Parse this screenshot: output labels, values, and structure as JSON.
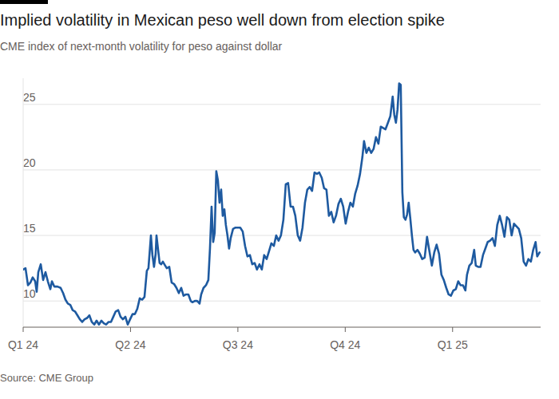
{
  "chart_data": {
    "type": "line",
    "title": "Implied volatility in Mexican peso well down from election spike",
    "subtitle": "CME index of next-month volatility for peso against dollar",
    "source": "Source: CME Group",
    "color": "#1e5aa0",
    "grid": true,
    "xlim": [
      0,
      4.82
    ],
    "xticks": [
      {
        "value": 0,
        "label": "Q1 24"
      },
      {
        "value": 1,
        "label": "Q2 24"
      },
      {
        "value": 2,
        "label": "Q3 24"
      },
      {
        "value": 3,
        "label": "Q4 24"
      },
      {
        "value": 4,
        "label": "Q1 25"
      }
    ],
    "ylim": [
      8,
      27
    ],
    "yticks": [
      10,
      15,
      20,
      25
    ],
    "x": [
      0,
      0.022,
      0.045,
      0.067,
      0.089,
      0.112,
      0.126,
      0.141,
      0.164,
      0.186,
      0.208,
      0.23,
      0.253,
      0.268,
      0.29,
      0.32,
      0.349,
      0.372,
      0.394,
      0.416,
      0.439,
      0.461,
      0.483,
      0.506,
      0.528,
      0.55,
      0.572,
      0.595,
      0.617,
      0.639,
      0.662,
      0.684,
      0.706,
      0.729,
      0.751,
      0.773,
      0.796,
      0.818,
      0.84,
      0.862,
      0.885,
      0.907,
      0.929,
      0.952,
      0.974,
      0.996,
      1.019,
      1.041,
      1.063,
      1.086,
      1.108,
      1.13,
      1.152,
      1.167,
      1.19,
      1.204,
      1.219,
      1.234,
      1.242,
      1.257,
      1.271,
      1.286,
      1.301,
      1.323,
      1.338,
      1.361,
      1.383,
      1.405,
      1.428,
      1.45,
      1.472,
      1.494,
      1.517,
      1.539,
      1.561,
      1.576,
      1.599,
      1.621,
      1.643,
      1.658,
      1.68,
      1.703,
      1.725,
      1.74,
      1.755,
      1.77,
      1.784,
      1.799,
      1.814,
      1.829,
      1.844,
      1.859,
      1.874,
      1.888,
      1.903,
      1.918,
      1.933,
      1.955,
      1.978,
      2.0,
      2.022,
      2.045,
      2.067,
      2.089,
      2.112,
      2.134,
      2.156,
      2.178,
      2.201,
      2.223,
      2.245,
      2.268,
      2.29,
      2.312,
      2.335,
      2.357,
      2.379,
      2.401,
      2.424,
      2.446,
      2.468,
      2.491,
      2.513,
      2.535,
      2.558,
      2.58,
      2.602,
      2.625,
      2.647,
      2.669,
      2.691,
      2.714,
      2.736,
      2.758,
      2.781,
      2.803,
      2.825,
      2.848,
      2.87,
      2.892,
      2.914,
      2.937,
      2.959,
      2.981,
      3.004,
      3.026,
      3.048,
      3.071,
      3.093,
      3.115,
      3.138,
      3.16,
      3.175,
      3.197,
      3.219,
      3.242,
      3.264,
      3.286,
      3.309,
      3.331,
      3.353,
      3.375,
      3.398,
      3.42,
      3.442,
      3.457,
      3.472,
      3.487,
      3.502,
      3.517,
      3.532,
      3.546,
      3.561,
      3.576,
      3.591,
      3.606,
      3.621,
      3.636,
      3.651,
      3.673,
      3.695,
      3.717,
      3.74,
      3.762,
      3.784,
      3.807,
      3.829,
      3.851,
      3.874,
      3.896,
      3.918,
      3.941,
      3.963,
      3.985,
      4.007,
      4.03,
      4.052,
      4.074,
      4.097,
      4.119,
      4.134,
      4.156,
      4.178,
      4.201,
      4.216,
      4.238,
      4.26,
      4.283,
      4.305,
      4.327,
      4.349,
      4.372,
      4.394,
      4.416,
      4.439,
      4.461,
      4.483,
      4.506,
      4.528,
      4.55,
      4.572,
      4.595,
      4.617,
      4.639,
      4.662,
      4.684,
      4.706,
      4.729,
      4.751,
      4.773,
      4.788,
      4.81
    ],
    "values": [
      12.4,
      12.5,
      11.2,
      11.4,
      11.8,
      11.5,
      10.7,
      12.2,
      12.8,
      11.6,
      12.2,
      11.5,
      10.9,
      11.5,
      11.1,
      11.1,
      11.0,
      10.6,
      10.1,
      9.8,
      9.7,
      9.3,
      9.2,
      8.9,
      8.6,
      8.4,
      8.6,
      8.7,
      8.9,
      8.4,
      8.2,
      8.5,
      8.2,
      8.5,
      8.3,
      8.2,
      8.4,
      8.4,
      8.8,
      9.2,
      9.3,
      8.8,
      8.6,
      8.8,
      8.2,
      8.6,
      9.0,
      9.0,
      9.4,
      10.2,
      10.1,
      10.3,
      12.3,
      12.5,
      15.0,
      13.5,
      12.6,
      13.6,
      15.0,
      13.9,
      12.9,
      12.8,
      13.0,
      12.7,
      12.5,
      12.6,
      11.4,
      11.3,
      11.0,
      10.6,
      11.0,
      10.4,
      10.5,
      10.5,
      10.0,
      9.9,
      10.0,
      10.0,
      9.8,
      10.5,
      11.0,
      11.2,
      11.6,
      14.0,
      17.2,
      14.5,
      15.2,
      19.9,
      19.2,
      17.5,
      18.5,
      16.5,
      17.0,
      15.8,
      15.0,
      14.0,
      14.8,
      15.5,
      15.6,
      15.6,
      15.6,
      15.3,
      14.2,
      13.4,
      13.5,
      12.8,
      12.9,
      12.4,
      12.8,
      12.4,
      13.5,
      13.2,
      13.8,
      14.4,
      14.2,
      15.0,
      14.6,
      15.0,
      16.2,
      18.9,
      19.0,
      17.2,
      17.2,
      16.5,
      15.0,
      14.6,
      15.6,
      17.5,
      18.5,
      18.7,
      18.4,
      19.8,
      19.7,
      19.8,
      19.4,
      18.6,
      18.5,
      16.5,
      16.8,
      16.0,
      16.5,
      17.4,
      17.8,
      17.2,
      15.9,
      16.8,
      17.5,
      17.2,
      18.2,
      18.8,
      19.7,
      21.0,
      22.2,
      21.3,
      21.7,
      21.3,
      21.6,
      22.5,
      22.0,
      23.3,
      23.2,
      23.1,
      23.6,
      24.1,
      25.6,
      24.2,
      23.6,
      24.6,
      26.6,
      26.5,
      18.3,
      16.4,
      16.2,
      16.6,
      17.5,
      16.3,
      15.0,
      13.9,
      13.7,
      13.9,
      13.6,
      13.2,
      13.3,
      14.9,
      13.8,
      12.7,
      13.7,
      14.3,
      13.6,
      12.0,
      11.6,
      11.0,
      10.5,
      10.4,
      10.8,
      10.9,
      11.5,
      11.2,
      11.2,
      10.8,
      12.0,
      12.7,
      12.9,
      13.9,
      12.7,
      12.6,
      12.6,
      13.5,
      14.0,
      14.5,
      14.6,
      14.8,
      14.2,
      15.8,
      16.5,
      15.8,
      14.9,
      16.4,
      16.2,
      15.0,
      15.9,
      15.7,
      15.5,
      14.8,
      13.0,
      12.7,
      13.2,
      13.0,
      13.9,
      14.5,
      13.4,
      13.7
    ]
  }
}
